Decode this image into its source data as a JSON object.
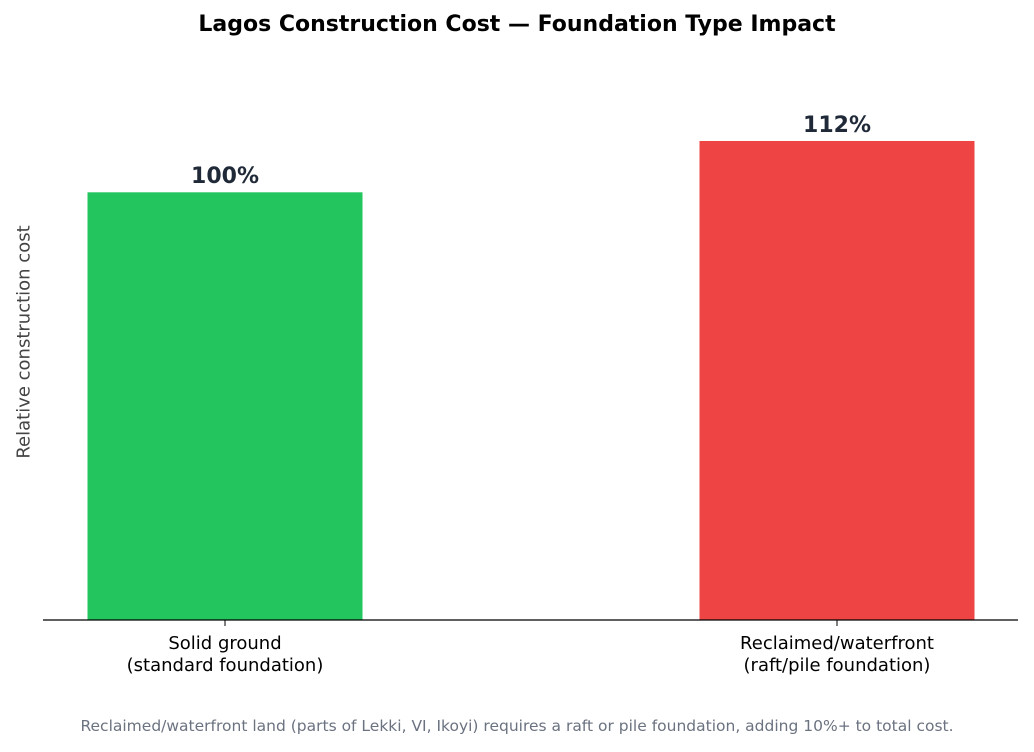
{
  "chart_data": {
    "type": "bar",
    "title": "Lagos Construction Cost — Foundation Type Impact",
    "ylabel": "Relative construction cost",
    "categories": [
      "Solid ground\n(standard foundation)",
      "Reclaimed/waterfront\n(raft/pile foundation)"
    ],
    "values": [
      100,
      112
    ],
    "value_labels": [
      "100%",
      "112%"
    ],
    "colors": [
      "#22c55e",
      "#ef4444"
    ],
    "ylim": [
      0,
      130
    ],
    "footnote": "Reclaimed/waterfront land (parts of Lekki, VI, Ikoyi) requires a raft or pile foundation, adding 10%+ to total cost."
  }
}
